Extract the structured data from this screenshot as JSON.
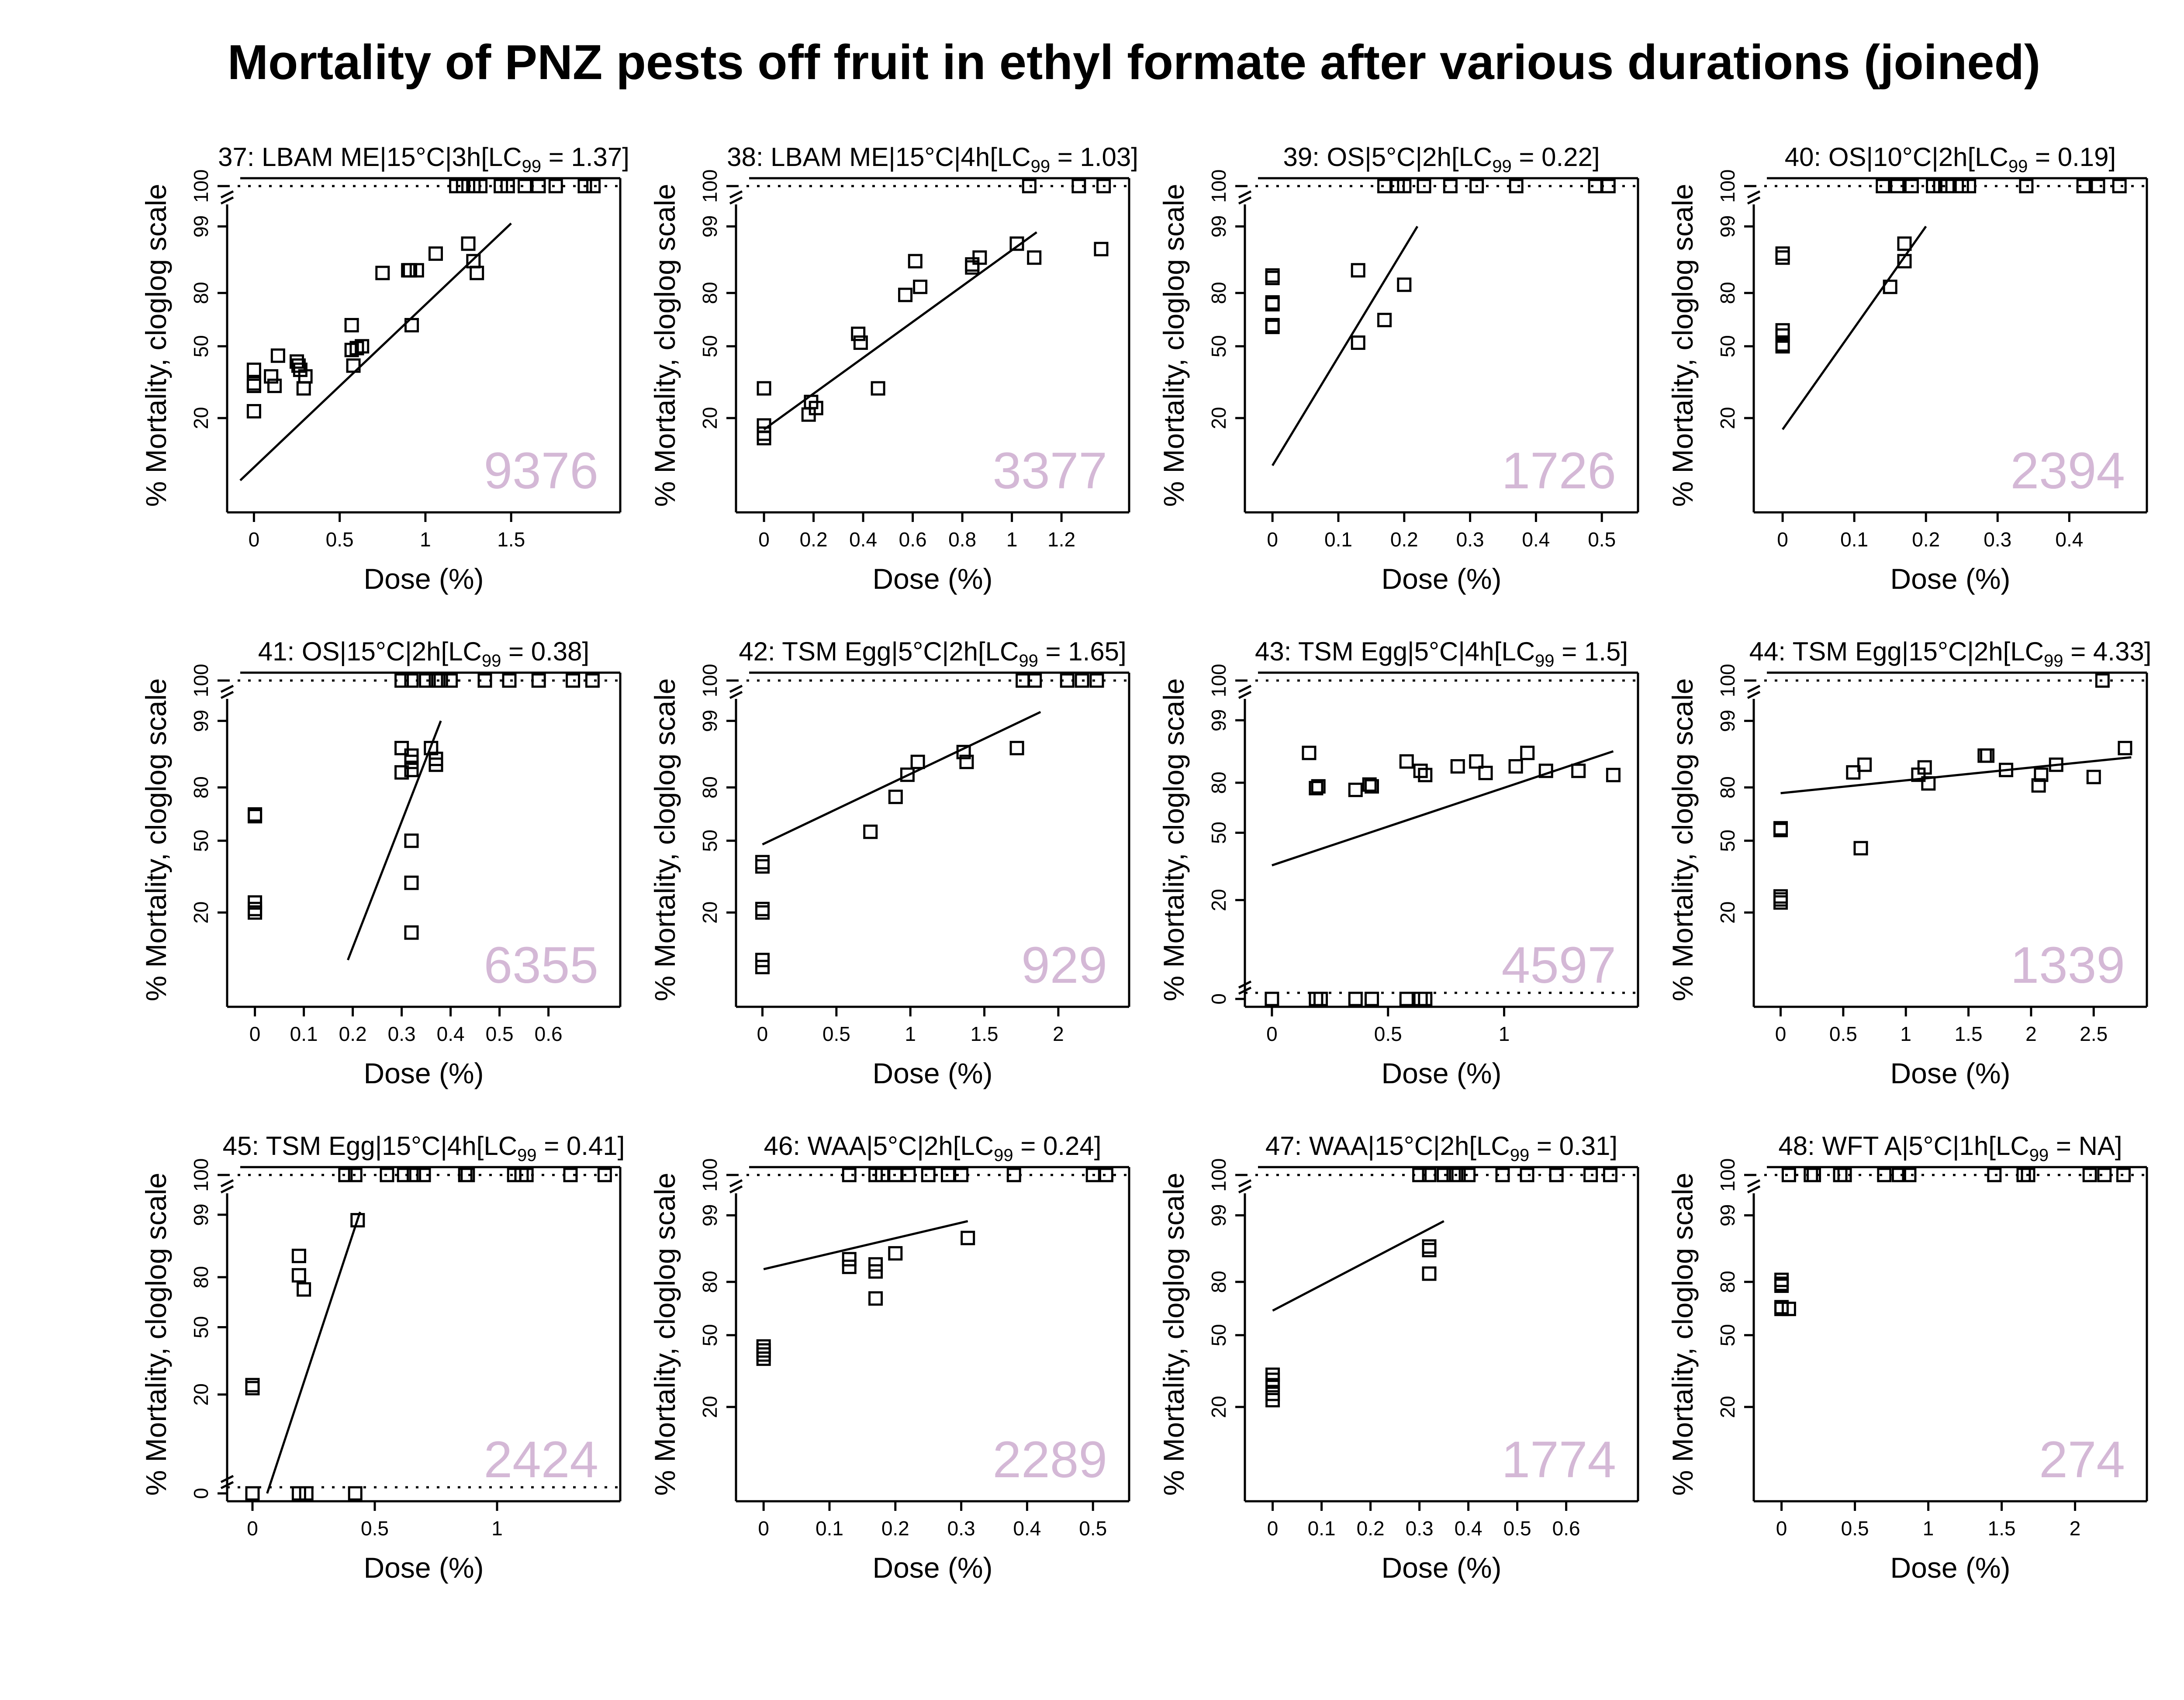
{
  "title": "Mortality of PNZ pests off fruit in ethyl formate after various durations (joined)",
  "shared": {
    "xlabel": "Dose (%)",
    "ylabel": "% Mortality, cloglog scale",
    "y_ticks": [
      20,
      50,
      80,
      99
    ],
    "y_top_label": "100",
    "y_zero_label": "0",
    "count_color": "#d4b8d6",
    "line_color": "#000000"
  },
  "chart_data": [
    {
      "panel": 37,
      "type": "scatter",
      "title_pre": "37: LBAM ME|15°C|3h[LC",
      "title_sub": "99",
      "title_post": " = 1.37]",
      "count": "9376",
      "xlim": [
        -0.08,
        2.06
      ],
      "x_ticks": [
        0,
        0.5,
        1,
        1.5
      ],
      "x_tick_labels": [
        "0",
        "0.5",
        "1",
        "1.5"
      ],
      "has_zero_row": false,
      "points": [
        [
          0,
          38
        ],
        [
          0,
          32
        ],
        [
          0,
          22
        ],
        [
          0,
          31
        ],
        [
          0.1,
          35
        ],
        [
          0.12,
          31
        ],
        [
          0.14,
          45
        ],
        [
          0.25,
          42
        ],
        [
          0.26,
          40
        ],
        [
          0.27,
          38
        ],
        [
          0.29,
          30
        ],
        [
          0.3,
          35
        ],
        [
          0.57,
          62
        ],
        [
          0.57,
          48
        ],
        [
          0.58,
          40
        ],
        [
          0.6,
          49
        ],
        [
          0.63,
          50
        ],
        [
          0.75,
          89
        ],
        [
          0.9,
          90
        ],
        [
          0.91,
          90
        ],
        [
          0.92,
          62
        ],
        [
          0.95,
          90
        ],
        [
          1.06,
          95
        ],
        [
          1.25,
          97
        ],
        [
          1.28,
          93
        ],
        [
          1.3,
          89
        ]
      ],
      "top_points": [
        1.18,
        1.22,
        1.28,
        1.32,
        1.44,
        1.48,
        1.58,
        1.66,
        1.76,
        1.93,
        1.98
      ],
      "zero_points": [],
      "fit_line": [
        [
          -0.08,
          8
        ],
        [
          1.5,
          99.2
        ]
      ]
    },
    {
      "panel": 38,
      "type": "scatter",
      "title_pre": "38: LBAM ME|15°C|4h[LC",
      "title_sub": "99",
      "title_post": " = 1.03]",
      "count": "3377",
      "xlim": [
        -0.06,
        1.42
      ],
      "x_ticks": [
        0,
        0.2,
        0.4,
        0.6,
        0.8,
        1,
        1.2
      ],
      "x_tick_labels": [
        "0",
        "0.2",
        "0.4",
        "0.6",
        "0.8",
        "1",
        "1.2"
      ],
      "has_zero_row": false,
      "points": [
        [
          0,
          30
        ],
        [
          0,
          18
        ],
        [
          0,
          16
        ],
        [
          0,
          15
        ],
        [
          0.18,
          21
        ],
        [
          0.19,
          25
        ],
        [
          0.21,
          23
        ],
        [
          0.38,
          57
        ],
        [
          0.39,
          52
        ],
        [
          0.46,
          30
        ],
        [
          0.57,
          79
        ],
        [
          0.61,
          93
        ],
        [
          0.63,
          83
        ],
        [
          0.84,
          92
        ],
        [
          0.84,
          91
        ],
        [
          0.87,
          94
        ],
        [
          1.02,
          97
        ],
        [
          1.09,
          94
        ],
        [
          1.36,
          96
        ]
      ],
      "top_points": [
        1.07,
        1.27,
        1.37
      ],
      "zero_points": [],
      "fit_line": [
        [
          0,
          17
        ],
        [
          1.1,
          98.5
        ]
      ]
    },
    {
      "panel": 39,
      "type": "scatter",
      "title_pre": "39: OS|5°C|2h[LC",
      "title_sub": "99",
      "title_post": " = 0.22]",
      "count": "1726",
      "xlim": [
        -0.022,
        0.535
      ],
      "x_ticks": [
        0,
        0.1,
        0.2,
        0.3,
        0.4,
        0.5
      ],
      "x_tick_labels": [
        "0",
        "0.1",
        "0.2",
        "0.3",
        "0.4",
        "0.5"
      ],
      "has_zero_row": false,
      "points": [
        [
          0,
          88
        ],
        [
          0,
          87
        ],
        [
          0,
          75
        ],
        [
          0,
          74
        ],
        [
          0,
          62
        ],
        [
          0,
          61
        ],
        [
          0.13,
          52
        ],
        [
          0.13,
          90
        ],
        [
          0.17,
          65
        ],
        [
          0.2,
          84
        ]
      ],
      "top_points": [
        0.17,
        0.19,
        0.2,
        0.23,
        0.27,
        0.31,
        0.37,
        0.49,
        0.51
      ],
      "zero_points": [],
      "fit_line": [
        [
          0,
          10
        ],
        [
          0.22,
          99
        ]
      ]
    },
    {
      "panel": 40,
      "type": "scatter",
      "title_pre": "40: OS|10°C|2h[LC",
      "title_sub": "99",
      "title_post": " = 0.19]",
      "count": "2394",
      "xlim": [
        -0.022,
        0.49
      ],
      "x_ticks": [
        0,
        0.1,
        0.2,
        0.3,
        0.4
      ],
      "x_tick_labels": [
        "0",
        "0.1",
        "0.2",
        "0.3",
        "0.4"
      ],
      "has_zero_row": false,
      "points": [
        [
          0,
          95
        ],
        [
          0,
          94
        ],
        [
          0,
          59
        ],
        [
          0,
          56
        ],
        [
          0,
          51
        ],
        [
          0,
          50
        ],
        [
          0.15,
          83
        ],
        [
          0.17,
          93
        ],
        [
          0.17,
          97
        ]
      ],
      "top_points": [
        0.14,
        0.16,
        0.18,
        0.21,
        0.22,
        0.23,
        0.25,
        0.26,
        0.34,
        0.42,
        0.44,
        0.47
      ],
      "zero_points": [],
      "fit_line": [
        [
          0,
          17
        ],
        [
          0.2,
          99
        ]
      ]
    },
    {
      "panel": 41,
      "type": "scatter",
      "title_pre": "41: OS|15°C|2h[LC",
      "title_sub": "99",
      "title_post": " = 0.38]",
      "count": "6355",
      "xlim": [
        -0.03,
        0.72
      ],
      "x_ticks": [
        0,
        0.1,
        0.2,
        0.3,
        0.4,
        0.5,
        0.6
      ],
      "x_tick_labels": [
        "0",
        "0.1",
        "0.2",
        "0.3",
        "0.4",
        "0.5",
        "0.6"
      ],
      "has_zero_row": false,
      "points": [
        [
          0,
          65
        ],
        [
          0,
          64
        ],
        [
          0,
          23
        ],
        [
          0,
          21
        ],
        [
          0,
          20
        ],
        [
          0.3,
          95
        ],
        [
          0.3,
          87
        ],
        [
          0.32,
          93
        ],
        [
          0.32,
          91
        ],
        [
          0.32,
          88
        ],
        [
          0.32,
          50
        ],
        [
          0.32,
          30
        ],
        [
          0.32,
          15
        ],
        [
          0.36,
          95
        ],
        [
          0.37,
          92
        ],
        [
          0.37,
          90
        ]
      ],
      "top_points": [
        0.3,
        0.32,
        0.35,
        0.37,
        0.38,
        0.4,
        0.47,
        0.52,
        0.58,
        0.65,
        0.69
      ],
      "zero_points": [],
      "fit_line": [
        [
          0.19,
          10
        ],
        [
          0.38,
          99
        ]
      ]
    },
    {
      "panel": 42,
      "type": "scatter",
      "title_pre": "42: TSM Egg|5°C|2h[LC",
      "title_sub": "99",
      "title_post": " = 1.65]",
      "count": "929",
      "xlim": [
        -0.09,
        2.39
      ],
      "x_ticks": [
        0,
        0.5,
        1,
        1.5,
        2
      ],
      "x_tick_labels": [
        "0",
        "0.5",
        "1",
        "1.5",
        "2"
      ],
      "has_zero_row": false,
      "points": [
        [
          0,
          39
        ],
        [
          0,
          37
        ],
        [
          0,
          21
        ],
        [
          0,
          20
        ],
        [
          0,
          10
        ],
        [
          0,
          9
        ],
        [
          0.73,
          55
        ],
        [
          0.9,
          75
        ],
        [
          0.98,
          86
        ],
        [
          1.05,
          91
        ],
        [
          1.36,
          94
        ],
        [
          1.38,
          91
        ],
        [
          1.72,
          95
        ]
      ],
      "top_points": [
        1.76,
        1.84,
        2.06,
        2.16,
        2.26
      ],
      "zero_points": [],
      "fit_line": [
        [
          0,
          48
        ],
        [
          1.88,
          99.5
        ]
      ]
    },
    {
      "panel": 43,
      "type": "scatter",
      "title_pre": "43: TSM Egg|5°C|4h[LC",
      "title_sub": "99",
      "title_post": " = 1.5]",
      "count": "4597",
      "xlim": [
        -0.06,
        1.52
      ],
      "x_ticks": [
        0,
        0.5,
        1
      ],
      "x_tick_labels": [
        "0",
        "0.5",
        "1"
      ],
      "has_zero_row": true,
      "points": [
        [
          0.16,
          93
        ],
        [
          0.19,
          77
        ],
        [
          0.2,
          78
        ],
        [
          0.36,
          76
        ],
        [
          0.42,
          79
        ],
        [
          0.43,
          78
        ],
        [
          0.58,
          90
        ],
        [
          0.64,
          86
        ],
        [
          0.66,
          84
        ],
        [
          0.8,
          88
        ],
        [
          0.88,
          90
        ],
        [
          0.92,
          85
        ],
        [
          1.05,
          88
        ],
        [
          1.1,
          93
        ],
        [
          1.18,
          86
        ],
        [
          1.32,
          86
        ],
        [
          1.47,
          84
        ]
      ],
      "top_points": [],
      "zero_points": [
        0,
        0.19,
        0.21,
        0.36,
        0.43,
        0.58,
        0.64,
        0.66
      ],
      "fit_line": [
        [
          0,
          33
        ],
        [
          1.47,
          93.5
        ]
      ]
    },
    {
      "panel": 44,
      "type": "scatter",
      "title_pre": "44: TSM Egg|15°C|2h[LC",
      "title_sub": "99",
      "title_post": " = 4.33]",
      "count": "1339",
      "xlim": [
        -0.11,
        2.82
      ],
      "x_ticks": [
        0,
        0.5,
        1,
        1.5,
        2,
        2.5
      ],
      "x_tick_labels": [
        "0",
        "0.5",
        "1",
        "1.5",
        "2",
        "2.5"
      ],
      "has_zero_row": false,
      "points": [
        [
          0,
          57
        ],
        [
          0,
          56
        ],
        [
          0,
          25
        ],
        [
          0,
          24
        ],
        [
          0,
          23
        ],
        [
          0.58,
          87
        ],
        [
          0.67,
          90
        ],
        [
          0.64,
          46
        ],
        [
          1.1,
          86
        ],
        [
          1.15,
          89
        ],
        [
          1.18,
          82
        ],
        [
          1.63,
          93
        ],
        [
          1.65,
          93
        ],
        [
          1.8,
          88
        ],
        [
          2.06,
          81
        ],
        [
          2.08,
          86
        ],
        [
          2.2,
          90
        ],
        [
          2.5,
          85
        ],
        [
          2.75,
          95
        ]
      ],
      "top_points": [
        2.57
      ],
      "zero_points": [],
      "fit_line": [
        [
          0,
          77
        ],
        [
          2.8,
          92.5
        ]
      ]
    },
    {
      "panel": 45,
      "type": "scatter",
      "title_pre": "45: TSM Egg|15°C|4h[LC",
      "title_sub": "99",
      "title_post": " = 0.41]",
      "count": "2424",
      "xlim": [
        -0.05,
        1.45
      ],
      "x_ticks": [
        0,
        0.5,
        1
      ],
      "x_tick_labels": [
        "0",
        "0.5",
        "1"
      ],
      "has_zero_row": true,
      "points": [
        [
          0,
          23
        ],
        [
          0,
          22
        ],
        [
          0.19,
          90
        ],
        [
          0.19,
          81
        ],
        [
          0.21,
          73
        ],
        [
          0.43,
          98.5
        ]
      ],
      "top_points": [
        0.38,
        0.42,
        0.55,
        0.62,
        0.66,
        0.7,
        0.87,
        0.88,
        1.07,
        1.1,
        1.12,
        1.3,
        1.44
      ],
      "zero_points": [
        0,
        0.19,
        0.22,
        0.42
      ],
      "fit_line": [
        [
          0.06,
          0
        ],
        [
          0.44,
          99.2
        ]
      ]
    },
    {
      "panel": 46,
      "type": "scatter",
      "title_pre": "46: WAA|5°C|2h[LC",
      "title_sub": "99",
      "title_post": " = 0.24]",
      "count": "2289",
      "xlim": [
        -0.022,
        0.535
      ],
      "x_ticks": [
        0,
        0.1,
        0.2,
        0.3,
        0.4,
        0.5
      ],
      "x_tick_labels": [
        "0",
        "0.1",
        "0.2",
        "0.3",
        "0.4",
        "0.5"
      ],
      "has_zero_row": false,
      "points": [
        [
          0,
          44
        ],
        [
          0,
          42
        ],
        [
          0,
          40
        ],
        [
          0,
          38
        ],
        [
          0.13,
          90
        ],
        [
          0.13,
          87
        ],
        [
          0.17,
          88
        ],
        [
          0.17,
          85
        ],
        [
          0.17,
          71
        ],
        [
          0.2,
          92
        ],
        [
          0.31,
          96
        ]
      ],
      "top_points": [
        0.13,
        0.17,
        0.18,
        0.2,
        0.22,
        0.25,
        0.28,
        0.3,
        0.38,
        0.5,
        0.52
      ],
      "zero_points": [],
      "fit_line": [
        [
          0,
          86
        ],
        [
          0.31,
          98.5
        ]
      ]
    },
    {
      "panel": 47,
      "type": "scatter",
      "title_pre": "47: WAA|15°C|2h[LC",
      "title_sub": "99",
      "title_post": " = 0.31]",
      "count": "1774",
      "xlim": [
        -0.03,
        0.72
      ],
      "x_ticks": [
        0,
        0.1,
        0.2,
        0.3,
        0.4,
        0.5,
        0.6
      ],
      "x_tick_labels": [
        "0",
        "0.1",
        "0.2",
        "0.3",
        "0.4",
        "0.5",
        "0.6"
      ],
      "has_zero_row": false,
      "points": [
        [
          0,
          31
        ],
        [
          0,
          29
        ],
        [
          0,
          27
        ],
        [
          0,
          24
        ],
        [
          0,
          22
        ],
        [
          0.32,
          94
        ],
        [
          0.32,
          93
        ],
        [
          0.32,
          84
        ]
      ],
      "top_points": [
        0.3,
        0.32,
        0.35,
        0.37,
        0.38,
        0.4,
        0.47,
        0.52,
        0.58,
        0.65,
        0.69
      ],
      "zero_points": [],
      "fit_line": [
        [
          0,
          64
        ],
        [
          0.35,
          98.5
        ]
      ]
    },
    {
      "panel": 48,
      "type": "scatter",
      "title_pre": "48: WFT A|5°C|1h[LC",
      "title_sub": "99",
      "title_post": " = NA]",
      "count": "274",
      "xlim": [
        -0.1,
        2.4
      ],
      "x_ticks": [
        0,
        0.5,
        1,
        1.5,
        2
      ],
      "x_tick_labels": [
        "0",
        "0.5",
        "1",
        "1.5",
        "2"
      ],
      "has_zero_row": false,
      "points": [
        [
          0,
          81
        ],
        [
          0,
          79
        ],
        [
          0,
          78
        ],
        [
          0,
          66
        ],
        [
          0,
          65
        ],
        [
          0.05,
          65
        ]
      ],
      "top_points": [
        0.05,
        0.2,
        0.22,
        0.4,
        0.43,
        0.7,
        0.8,
        0.87,
        1.45,
        1.65,
        1.68,
        2.1,
        2.2,
        2.33
      ],
      "zero_points": [],
      "fit_line": []
    }
  ]
}
